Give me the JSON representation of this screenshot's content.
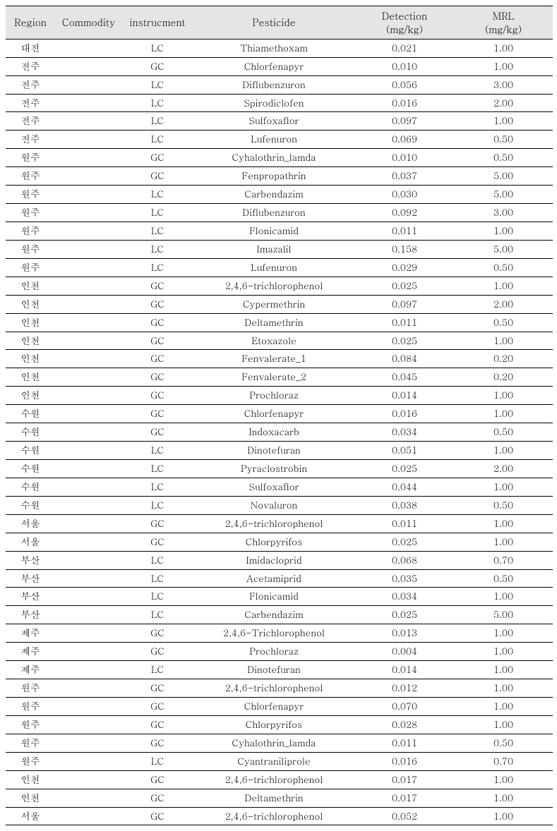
{
  "table": {
    "header_bg": "#e5e5e5",
    "border_color": "#000000",
    "columns": [
      {
        "key": "region",
        "label_line1": "Region",
        "label_line2": ""
      },
      {
        "key": "commodity",
        "label_line1": "Commodity",
        "label_line2": ""
      },
      {
        "key": "instrument",
        "label_line1": "instrucment",
        "label_line2": ""
      },
      {
        "key": "pesticide",
        "label_line1": "Pesticide",
        "label_line2": ""
      },
      {
        "key": "detection",
        "label_line1": "Detection",
        "label_line2": "(mg/kg)"
      },
      {
        "key": "mrl",
        "label_line1": "MRL",
        "label_line2": "(mg/kg)"
      }
    ],
    "rows": [
      {
        "region": "대전",
        "commodity": "",
        "instrument": "LC",
        "pesticide": "Thiamethoxam",
        "detection": "0.021",
        "mrl": "1.00"
      },
      {
        "region": "전주",
        "commodity": "",
        "instrument": "GC",
        "pesticide": "Chlorfenapyr",
        "detection": "0.010",
        "mrl": "1.00"
      },
      {
        "region": "전주",
        "commodity": "",
        "instrument": "LC",
        "pesticide": "Diflubenzuron",
        "detection": "0.056",
        "mrl": "3.00"
      },
      {
        "region": "전주",
        "commodity": "",
        "instrument": "LC",
        "pesticide": "Spirodiclofen",
        "detection": "0.016",
        "mrl": "2.00"
      },
      {
        "region": "전주",
        "commodity": "",
        "instrument": "LC",
        "pesticide": "Sulfoxaflor",
        "detection": "0.097",
        "mrl": "1.00"
      },
      {
        "region": "전주",
        "commodity": "",
        "instrument": "LC",
        "pesticide": "Lufenuron",
        "detection": "0.069",
        "mrl": "0.50"
      },
      {
        "region": "원주",
        "commodity": "",
        "instrument": "GC",
        "pesticide": "Cyhalothrin_lamda",
        "detection": "0.010",
        "mrl": "0.50"
      },
      {
        "region": "원주",
        "commodity": "",
        "instrument": "GC",
        "pesticide": "Fenpropathrin",
        "detection": "0.037",
        "mrl": "5.00"
      },
      {
        "region": "원주",
        "commodity": "",
        "instrument": "LC",
        "pesticide": "Carbendazim",
        "detection": "0.030",
        "mrl": "5.00"
      },
      {
        "region": "원주",
        "commodity": "",
        "instrument": "LC",
        "pesticide": "Diflubenzuron",
        "detection": "0.092",
        "mrl": "3.00"
      },
      {
        "region": "원주",
        "commodity": "",
        "instrument": "LC",
        "pesticide": "Flonicamid",
        "detection": "0.011",
        "mrl": "1.00"
      },
      {
        "region": "원주",
        "commodity": "",
        "instrument": "LC",
        "pesticide": "Imazalil",
        "detection": "0.158",
        "mrl": "5.00"
      },
      {
        "region": "원주",
        "commodity": "",
        "instrument": "LC",
        "pesticide": "Lufenuron",
        "detection": "0.029",
        "mrl": "0.50"
      },
      {
        "region": "인천",
        "commodity": "",
        "instrument": "GC",
        "pesticide": "2,4,6-trichlorophenol",
        "detection": "0.025",
        "mrl": "1.00"
      },
      {
        "region": "인천",
        "commodity": "",
        "instrument": "GC",
        "pesticide": "Cypermethrin",
        "detection": "0.097",
        "mrl": "2.00"
      },
      {
        "region": "인천",
        "commodity": "",
        "instrument": "GC",
        "pesticide": "Deltamethrin",
        "detection": "0.011",
        "mrl": "0.50"
      },
      {
        "region": "인천",
        "commodity": "",
        "instrument": "GC",
        "pesticide": "Etoxazole",
        "detection": "0.025",
        "mrl": "1.00"
      },
      {
        "region": "인천",
        "commodity": "",
        "instrument": "GC",
        "pesticide": "Fenvalerate_1",
        "detection": "0.084",
        "mrl": "0.20"
      },
      {
        "region": "인천",
        "commodity": "",
        "instrument": "GC",
        "pesticide": "Fenvalerate_2",
        "detection": "0.045",
        "mrl": "0.20"
      },
      {
        "region": "인천",
        "commodity": "",
        "instrument": "GC",
        "pesticide": "Prochloraz",
        "detection": "0.014",
        "mrl": "1.00"
      },
      {
        "region": "수원",
        "commodity": "",
        "instrument": "GC",
        "pesticide": "Chlorfenapyr",
        "detection": "0.016",
        "mrl": "1.00"
      },
      {
        "region": "수원",
        "commodity": "",
        "instrument": "GC",
        "pesticide": "Indoxacarb",
        "detection": "0.034",
        "mrl": "0.50"
      },
      {
        "region": "수원",
        "commodity": "",
        "instrument": "LC",
        "pesticide": "Dinotefuran",
        "detection": "0.051",
        "mrl": "1.00"
      },
      {
        "region": "수원",
        "commodity": "",
        "instrument": "LC",
        "pesticide": "Pyraclostrobin",
        "detection": "0.025",
        "mrl": "2.00"
      },
      {
        "region": "수원",
        "commodity": "",
        "instrument": "LC",
        "pesticide": "Sulfoxaflor",
        "detection": "0.044",
        "mrl": "1.00"
      },
      {
        "region": "수원",
        "commodity": "",
        "instrument": "LC",
        "pesticide": "Novaluron",
        "detection": "0.038",
        "mrl": "0.50"
      },
      {
        "region": "서울",
        "commodity": "",
        "instrument": "GC",
        "pesticide": "2,4,6-trichlorophenol",
        "detection": "0.011",
        "mrl": "1.00"
      },
      {
        "region": "서울",
        "commodity": "",
        "instrument": "GC",
        "pesticide": "Chlorpyrifos",
        "detection": "0.025",
        "mrl": "1.00"
      },
      {
        "region": "부산",
        "commodity": "",
        "instrument": "LC",
        "pesticide": "Imidacloprid",
        "detection": "0.068",
        "mrl": "0.70"
      },
      {
        "region": "부산",
        "commodity": "",
        "instrument": "LC",
        "pesticide": "Acetamiprid",
        "detection": "0.035",
        "mrl": "0.50"
      },
      {
        "region": "부산",
        "commodity": "",
        "instrument": "LC",
        "pesticide": "Flonicamid",
        "detection": "0.034",
        "mrl": "1.00"
      },
      {
        "region": "부산",
        "commodity": "",
        "instrument": "LC",
        "pesticide": "Carbendazim",
        "detection": "0.025",
        "mrl": "5.00"
      },
      {
        "region": "제주",
        "commodity": "",
        "instrument": "GC",
        "pesticide": "2,4,6-Trichlorophenol",
        "detection": "0.013",
        "mrl": "1.00"
      },
      {
        "region": "제주",
        "commodity": "",
        "instrument": "GC",
        "pesticide": "Prochloraz",
        "detection": "0.004",
        "mrl": "1.00"
      },
      {
        "region": "제주",
        "commodity": "",
        "instrument": "LC",
        "pesticide": "Dinotefuran",
        "detection": "0.014",
        "mrl": "1.00"
      },
      {
        "region": "원주",
        "commodity": "",
        "instrument": "GC",
        "pesticide": "2,4,6-trichlorophenol",
        "detection": "0.012",
        "mrl": "1.00"
      },
      {
        "region": "원주",
        "commodity": "",
        "instrument": "GC",
        "pesticide": "Chlorfenapyr",
        "detection": "0.070",
        "mrl": "1.00"
      },
      {
        "region": "원주",
        "commodity": "",
        "instrument": "GC",
        "pesticide": "Chlorpyrifos",
        "detection": "0.028",
        "mrl": "1.00"
      },
      {
        "region": "원주",
        "commodity": "",
        "instrument": "GC",
        "pesticide": "Cyhalothrin_lamda",
        "detection": "0.011",
        "mrl": "0.50"
      },
      {
        "region": "원주",
        "commodity": "",
        "instrument": "LC",
        "pesticide": "Cyantraniliprole",
        "detection": "0.016",
        "mrl": "0.70"
      },
      {
        "region": "인천",
        "commodity": "",
        "instrument": "GC",
        "pesticide": "2,4,6-trichlorophenol",
        "detection": "0.017",
        "mrl": "1.00"
      },
      {
        "region": "인천",
        "commodity": "",
        "instrument": "GC",
        "pesticide": "Deltamethrin",
        "detection": "0.017",
        "mrl": "1.00"
      },
      {
        "region": "서울",
        "commodity": "",
        "instrument": "GC",
        "pesticide": "2,4,6-trichlorophenol",
        "detection": "0.052",
        "mrl": "1.00"
      }
    ]
  }
}
